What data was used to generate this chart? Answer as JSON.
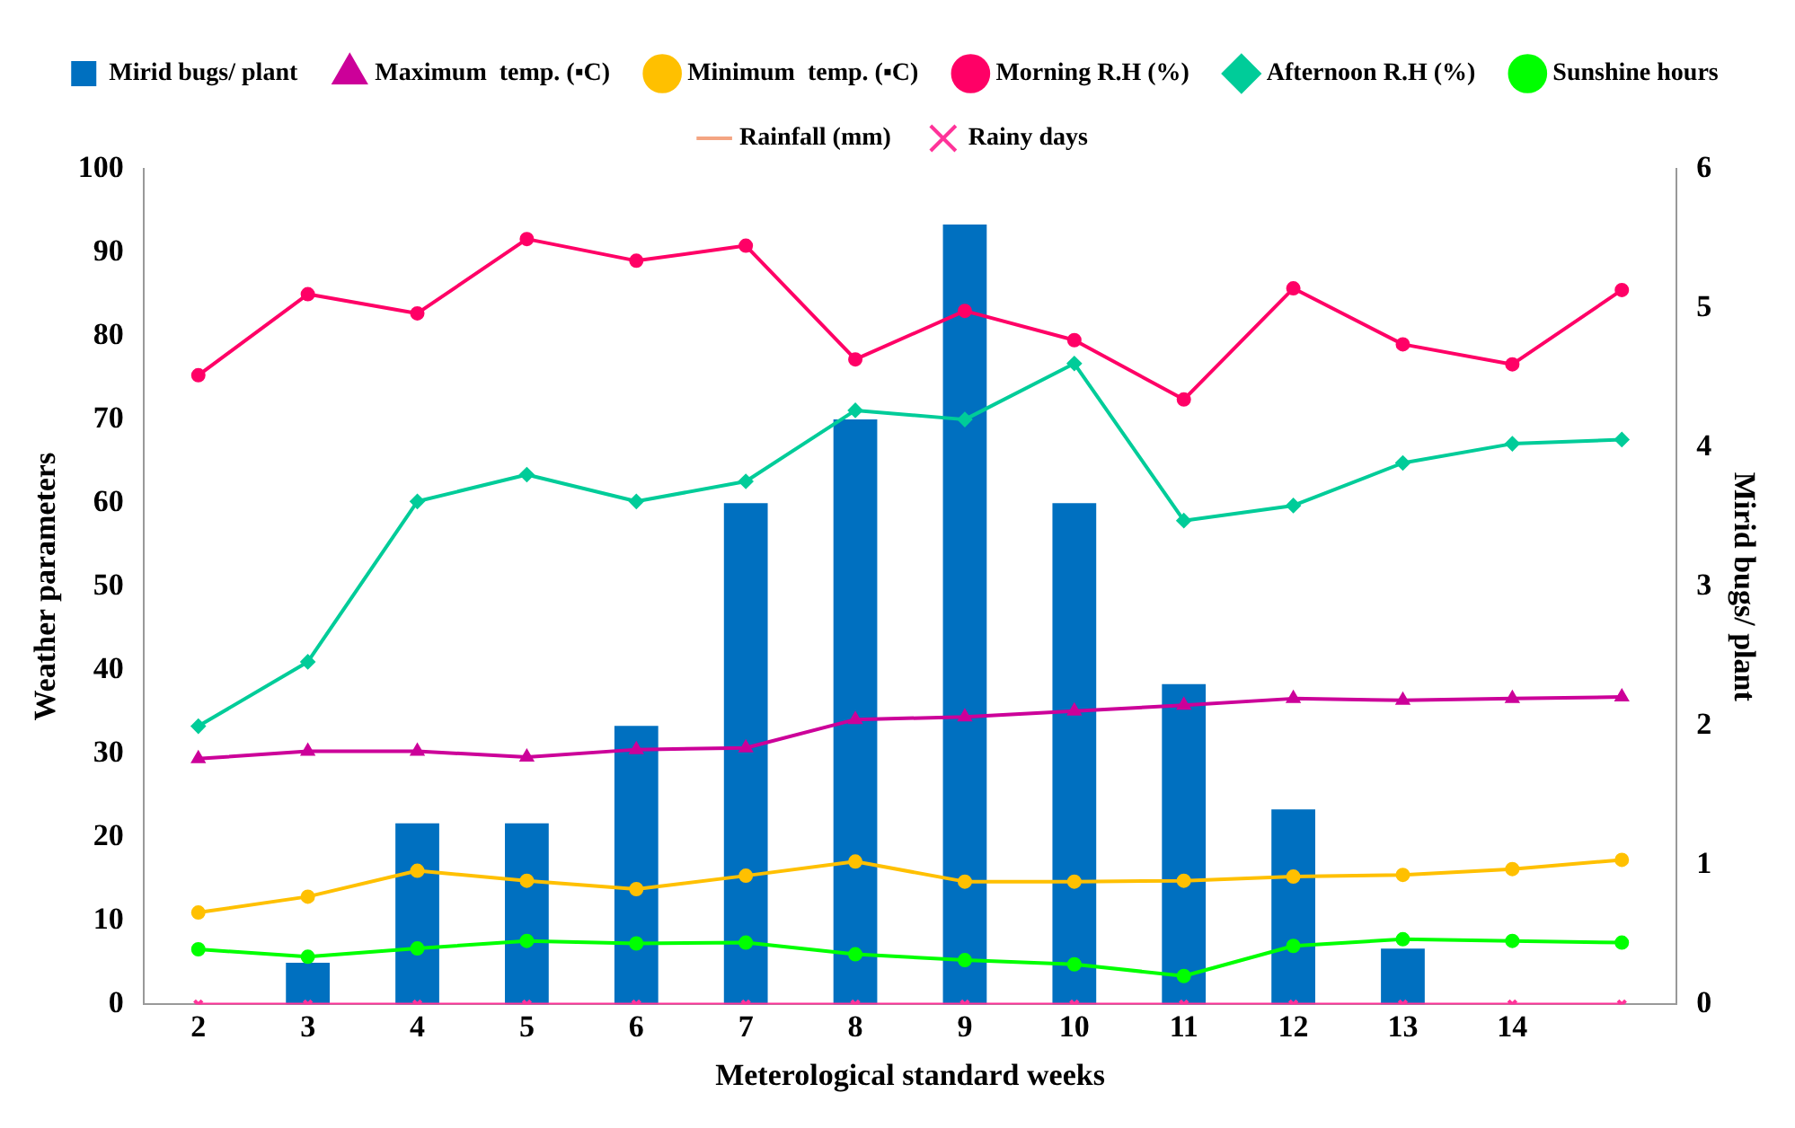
{
  "chart_data": {
    "type": "line",
    "xlabel": "Meterological standard weeks",
    "ylabel": "Weather parameters",
    "y2label": "Mirid bugs/ plant",
    "categories": [
      "2",
      "3",
      "4",
      "5",
      "6",
      "7",
      "8",
      "9",
      "10",
      "11",
      "12",
      "13",
      "14",
      null
    ],
    "series": [
      {
        "name": "Mirid bugs/ plant",
        "type": "bar",
        "axis": "y2",
        "color": "#0070c0",
        "values": [
          0,
          0.3,
          1.3,
          1.3,
          2.0,
          3.6,
          4.2,
          5.6,
          3.6,
          2.3,
          1.4,
          0.4,
          0,
          0
        ]
      },
      {
        "name": "Maximum  temp. (▪C)",
        "color": "#cc0099",
        "marker": "triangle",
        "values": [
          29.4,
          30.3,
          30.3,
          29.6,
          30.5,
          30.7,
          34.1,
          34.4,
          35.1,
          35.8,
          36.6,
          36.4,
          36.6,
          36.8
        ]
      },
      {
        "name": "Minimum  temp. (▪C)",
        "color": "#ffc000",
        "marker": "circle",
        "values": [
          11,
          12.9,
          16,
          14.8,
          13.8,
          15.4,
          17.1,
          14.7,
          14.7,
          14.8,
          15.3,
          15.5,
          16.2,
          17.3
        ]
      },
      {
        "name": "Morning R.H (%)",
        "color": "#ff0066",
        "marker": "circle",
        "values": [
          75.3,
          85,
          82.7,
          91.6,
          89,
          90.8,
          77.2,
          83,
          79.5,
          72.4,
          85.7,
          79,
          76.6,
          85.5
        ]
      },
      {
        "name": "Afternoon R.H (%)",
        "color": "#00cc99",
        "marker": "diamond",
        "values": [
          33.3,
          41,
          60.2,
          63.4,
          60.2,
          62.6,
          71.1,
          70,
          76.7,
          57.9,
          59.7,
          64.8,
          67.1,
          67.6
        ]
      },
      {
        "name": "Sunshine hours",
        "color": "#00ff00",
        "marker": "circle",
        "values": [
          6.6,
          5.7,
          6.7,
          7.6,
          7.3,
          7.4,
          6.0,
          5.3,
          4.8,
          3.4,
          7.0,
          7.8,
          7.6,
          7.4
        ]
      },
      {
        "name": "Rainfall (mm)",
        "color": "#f4a582",
        "marker": "none",
        "values": [
          null,
          null,
          null,
          null,
          null,
          null,
          null,
          null,
          null,
          null,
          null,
          null,
          null,
          null
        ]
      },
      {
        "name": "Rainy days",
        "color": "#ff3399",
        "marker": "cross",
        "values": [
          0,
          0,
          0,
          0,
          0,
          0,
          0,
          0,
          0,
          0,
          0,
          0,
          0,
          0
        ]
      }
    ],
    "ylim": [
      0,
      100
    ],
    "yticks": [
      0,
      10,
      20,
      30,
      40,
      50,
      60,
      70,
      80,
      90,
      100
    ],
    "y2lim": [
      0,
      6
    ],
    "y2ticks": [
      0,
      1,
      2,
      3,
      4,
      5,
      6
    ],
    "grid": false,
    "legend": "top"
  }
}
